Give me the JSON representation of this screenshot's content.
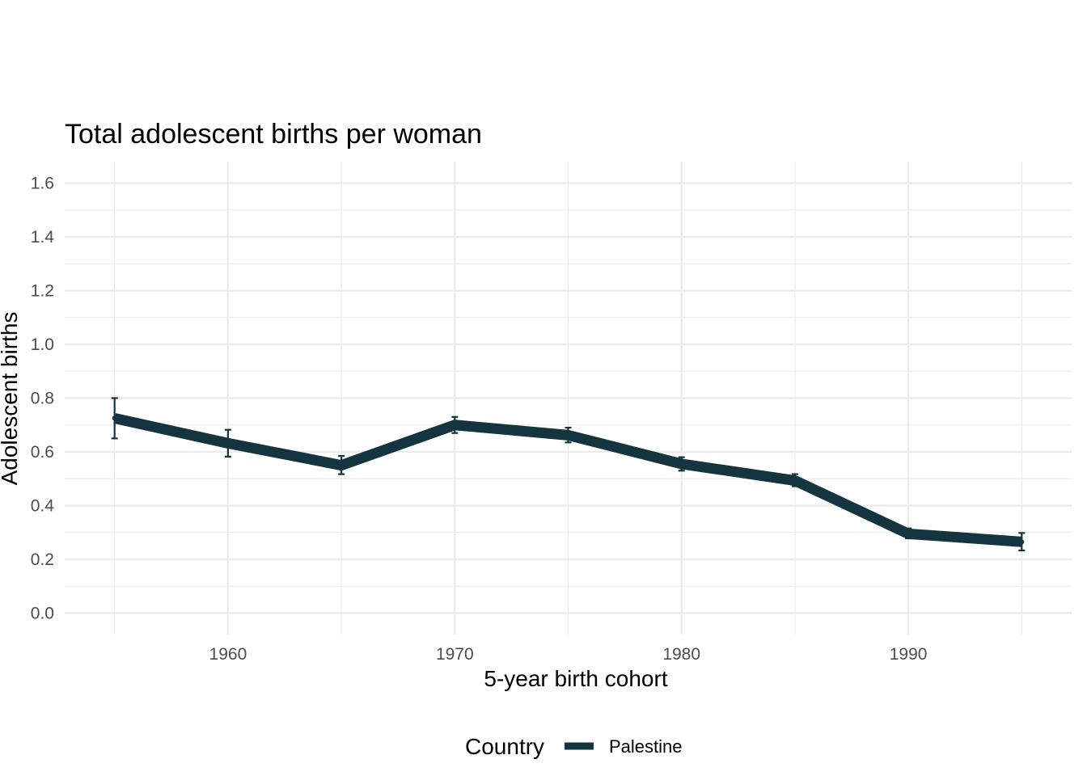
{
  "chart_data": {
    "type": "line",
    "title": "Total adolescent births per woman",
    "xlabel": "5-year birth cohort",
    "ylabel": "Adolescent births",
    "xlim": [
      1952.8,
      1997.2
    ],
    "ylim": [
      -0.08,
      1.68
    ],
    "x_ticks": [
      1960,
      1970,
      1980,
      1990
    ],
    "x_minor_ticks": [
      1955,
      1965,
      1975,
      1985,
      1995
    ],
    "y_ticks": [
      0.0,
      0.2,
      0.4,
      0.6,
      0.8,
      1.0,
      1.2,
      1.4,
      1.6
    ],
    "y_tick_labels": [
      "0.0",
      "0.2",
      "0.4",
      "0.6",
      "0.8",
      "1.0",
      "1.2",
      "1.4",
      "1.6"
    ],
    "x_tick_labels": [
      "1960",
      "1970",
      "1980",
      "1990"
    ],
    "grid": true,
    "legend": {
      "title": "Country",
      "position": "bottom"
    },
    "series": [
      {
        "name": "Palestine",
        "color": "#14343f",
        "x": [
          1955,
          1960,
          1965,
          1970,
          1975,
          1980,
          1985,
          1990,
          1995
        ],
        "values": [
          0.725,
          0.632,
          0.55,
          0.7,
          0.662,
          0.555,
          0.493,
          0.295,
          0.265
        ],
        "lower": [
          0.65,
          0.582,
          0.517,
          0.67,
          0.635,
          0.53,
          0.472,
          0.278,
          0.233
        ],
        "upper": [
          0.8,
          0.682,
          0.585,
          0.73,
          0.69,
          0.58,
          0.517,
          0.315,
          0.298
        ]
      }
    ]
  }
}
